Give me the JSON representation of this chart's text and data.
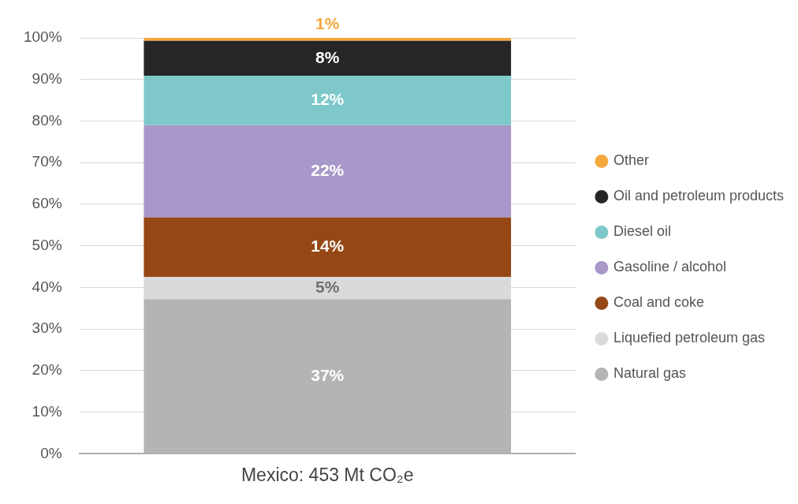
{
  "chart_data": {
    "type": "bar",
    "stacked": true,
    "categories": [
      "Mexico: 453 Mt CO₂e"
    ],
    "series": [
      {
        "name": "Natural gas",
        "color": "#b4b4b4",
        "values": [
          37.2
        ],
        "value_labels": [
          "37%"
        ]
      },
      {
        "name": "Liquefied petroleum gas",
        "color": "#dadada",
        "values": [
          5.3
        ],
        "value_labels": [
          "5%"
        ]
      },
      {
        "name": "Coal and coke",
        "color": "#954815",
        "values": [
          14.3
        ],
        "value_labels": [
          "14%"
        ]
      },
      {
        "name": "Gasoline / alcohol",
        "color": "#a897c9",
        "values": [
          22.2
        ],
        "value_labels": [
          "22%"
        ]
      },
      {
        "name": "Diesel oil",
        "color": "#7ec8ca",
        "values": [
          11.9
        ],
        "value_labels": [
          "12%"
        ]
      },
      {
        "name": "Oil and petroleum products",
        "color": "#262626",
        "values": [
          8.4
        ],
        "value_labels": [
          "8%"
        ]
      },
      {
        "name": "Other",
        "color": "#f5a93d",
        "values": [
          0.7
        ],
        "value_labels": [
          "1%"
        ]
      }
    ],
    "ylim": [
      0,
      100
    ],
    "yticks": [
      {
        "value": 0,
        "label": "0%"
      },
      {
        "value": 10,
        "label": "10%"
      },
      {
        "value": 20,
        "label": "20%"
      },
      {
        "value": 30,
        "label": "30%"
      },
      {
        "value": 40,
        "label": "40%"
      },
      {
        "value": 50,
        "label": "50%"
      },
      {
        "value": 60,
        "label": "60%"
      },
      {
        "value": 70,
        "label": "70%"
      },
      {
        "value": 80,
        "label": "80%"
      },
      {
        "value": 90,
        "label": "90%"
      },
      {
        "value": 100,
        "label": "100%"
      }
    ],
    "grid": "y",
    "legend": "right",
    "marker": "circle"
  }
}
